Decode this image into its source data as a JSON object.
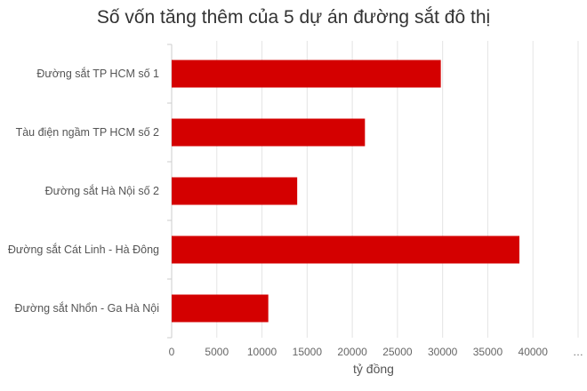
{
  "chart_data": {
    "type": "bar",
    "orientation": "horizontal",
    "title": "Số vốn tăng thêm của 5 dự án đường sắt đô thị",
    "xlabel": "tỷ đồng",
    "ylabel": "",
    "categories": [
      "Đường sắt TP HCM số 1",
      "Tàu điện ngầm TP HCM số 2",
      "Đường sắt Hà Nội số 2",
      "Đường sắt Cát Linh - Hà Đông",
      "Đường sắt Nhổn - Ga Hà Nội"
    ],
    "values": [
      29800,
      21400,
      13900,
      38500,
      10700
    ],
    "xlim": [
      0,
      45000
    ],
    "ticks": [
      "0",
      "5000",
      "10000",
      "15000",
      "20000",
      "25000",
      "30000",
      "35000",
      "40000",
      "…"
    ],
    "grid": true,
    "legend": "none",
    "bar_color": "#d40000",
    "grid_color": "#e4e4e4"
  }
}
